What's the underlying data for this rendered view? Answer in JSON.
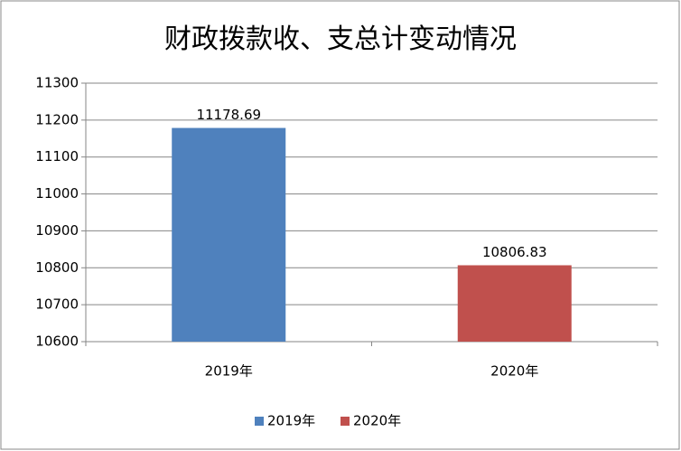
{
  "chart_data": {
    "type": "bar",
    "title": "财政拨款收、支总计变动情况",
    "categories": [
      "2019年",
      "2020年"
    ],
    "series": [
      {
        "name": "2019年",
        "color": "#4f81bd",
        "values": [
          11178.69,
          null
        ]
      },
      {
        "name": "2020年",
        "color": "#c0504d",
        "values": [
          null,
          10806.83
        ]
      }
    ],
    "ylim": [
      10600,
      11300
    ],
    "yticks": [
      10600,
      10700,
      10800,
      10900,
      11000,
      11100,
      11200,
      11300
    ],
    "grid": true,
    "legend": "bottom"
  }
}
